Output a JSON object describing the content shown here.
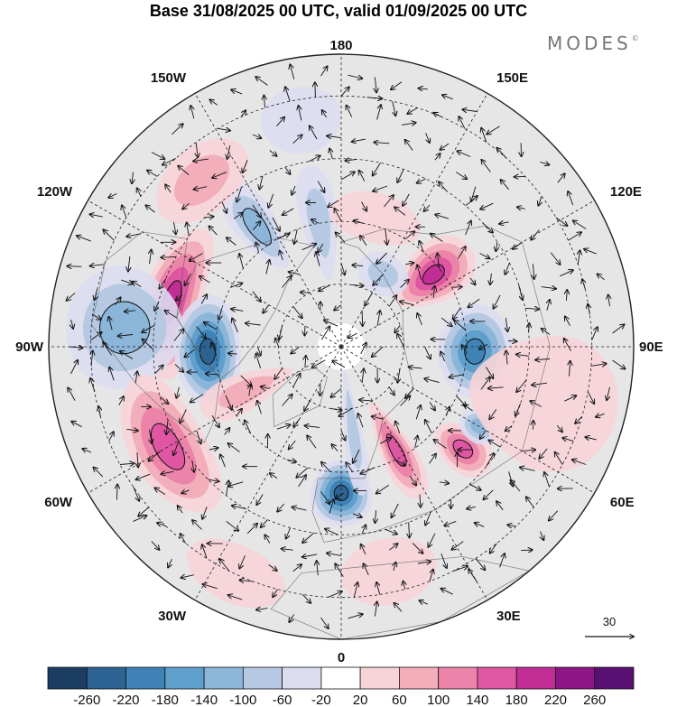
{
  "title": "Base 31/08/2025 00 UTC, valid 01/09/2025 00 UTC",
  "brand": "MODES",
  "brand_mark": "©",
  "longitude_labels": [
    {
      "text": "180",
      "lon": 180
    },
    {
      "text": "150E",
      "lon": 150
    },
    {
      "text": "120E",
      "lon": 120
    },
    {
      "text": "90E",
      "lon": 90
    },
    {
      "text": "60E",
      "lon": 60
    },
    {
      "text": "30E",
      "lon": 30
    },
    {
      "text": "0",
      "lon": 0
    },
    {
      "text": "30W",
      "lon": -30
    },
    {
      "text": "60W",
      "lon": -60
    },
    {
      "text": "90W",
      "lon": -90
    },
    {
      "text": "120W",
      "lon": -120
    },
    {
      "text": "150W",
      "lon": -150
    }
  ],
  "latitude_circles": [
    75,
    60,
    45,
    30
  ],
  "vector_reference": {
    "value": "30"
  },
  "colorbar": {
    "labels": [
      "-260",
      "-220",
      "-180",
      "-140",
      "-100",
      "-60",
      "-20",
      "20",
      "60",
      "100",
      "140",
      "180",
      "220",
      "260"
    ],
    "colors": [
      "#1c3d63",
      "#2c6393",
      "#3e82b6",
      "#5f9fcc",
      "#8bb6da",
      "#b5c9e3",
      "#dcddef",
      "#ffffff",
      "#f7d4d8",
      "#f2aebb",
      "#ec84aa",
      "#df56a2",
      "#c12d94",
      "#8f1685",
      "#5a0f73"
    ]
  },
  "anomalies": [
    {
      "name": "pos-120W-150W",
      "lon": -105,
      "lat": 48,
      "value": 200,
      "rlon": 26,
      "rlat": 7
    },
    {
      "name": "neg-90W",
      "lon": -88,
      "lat": 58,
      "value": -240,
      "rlon": 24,
      "rlat": 8
    },
    {
      "name": "neg-105W-south",
      "lon": -95,
      "lat": 38,
      "value": -140,
      "rlon": 16,
      "rlat": 14
    },
    {
      "name": "pos-60W",
      "lon": -60,
      "lat": 42,
      "value": 160,
      "rlon": 22,
      "rlat": 9
    },
    {
      "name": "pos-75W-north",
      "lon": -65,
      "lat": 65,
      "value": 100,
      "rlon": 10,
      "rlat": 12
    },
    {
      "name": "neg-0",
      "lon": 0,
      "lat": 55,
      "value": -240,
      "rlon": 12,
      "rlat": 8
    },
    {
      "name": "neg-10E",
      "lon": 8,
      "lat": 70,
      "value": -100,
      "rlon": 6,
      "rlat": 16
    },
    {
      "name": "pos-30E",
      "lon": 28,
      "lat": 62,
      "value": 160,
      "rlon": 8,
      "rlat": 13
    },
    {
      "name": "pos-45E",
      "lon": 50,
      "lat": 52,
      "value": 160,
      "rlon": 8,
      "rlat": 8
    },
    {
      "name": "neg-55E",
      "lon": 60,
      "lat": 52,
      "value": -120,
      "rlon": 6,
      "rlat": 5
    },
    {
      "name": "neg-90E",
      "lon": 88,
      "lat": 58,
      "value": -220,
      "rlon": 20,
      "rlat": 9
    },
    {
      "name": "pos-120E",
      "lon": 128,
      "lat": 62,
      "value": 200,
      "rlon": 14,
      "rlat": 11
    },
    {
      "name": "neg-150W",
      "lon": -145,
      "lat": 55,
      "value": -140,
      "rlon": 8,
      "rlat": 12
    },
    {
      "name": "neg-165W",
      "lon": -170,
      "lat": 60,
      "value": -80,
      "rlon": 8,
      "rlat": 14
    },
    {
      "name": "neg-150E",
      "lon": 150,
      "lat": 70,
      "value": -80,
      "rlon": 18,
      "rlat": 5
    },
    {
      "name": "pos-165E",
      "lon": 165,
      "lat": 58,
      "value": 60,
      "rlon": 20,
      "rlat": 6
    },
    {
      "name": "pos-90E-south",
      "lon": 75,
      "lat": 40,
      "value": 60,
      "rlon": 18,
      "rlat": 18
    },
    {
      "name": "neg-165W-edge",
      "lon": -170,
      "lat": 35,
      "value": -60,
      "rlon": 10,
      "rlat": 8
    },
    {
      "name": "pos-30W-edge",
      "lon": -25,
      "lat": 30,
      "value": 60,
      "rlon": 12,
      "rlat": 7
    },
    {
      "name": "pos-10E-edge",
      "lon": 12,
      "lat": 35,
      "value": 60,
      "rlon": 12,
      "rlat": 8
    },
    {
      "name": "pos-150W-south",
      "lon": -140,
      "lat": 38,
      "value": 80,
      "rlon": 14,
      "rlat": 8
    }
  ]
}
